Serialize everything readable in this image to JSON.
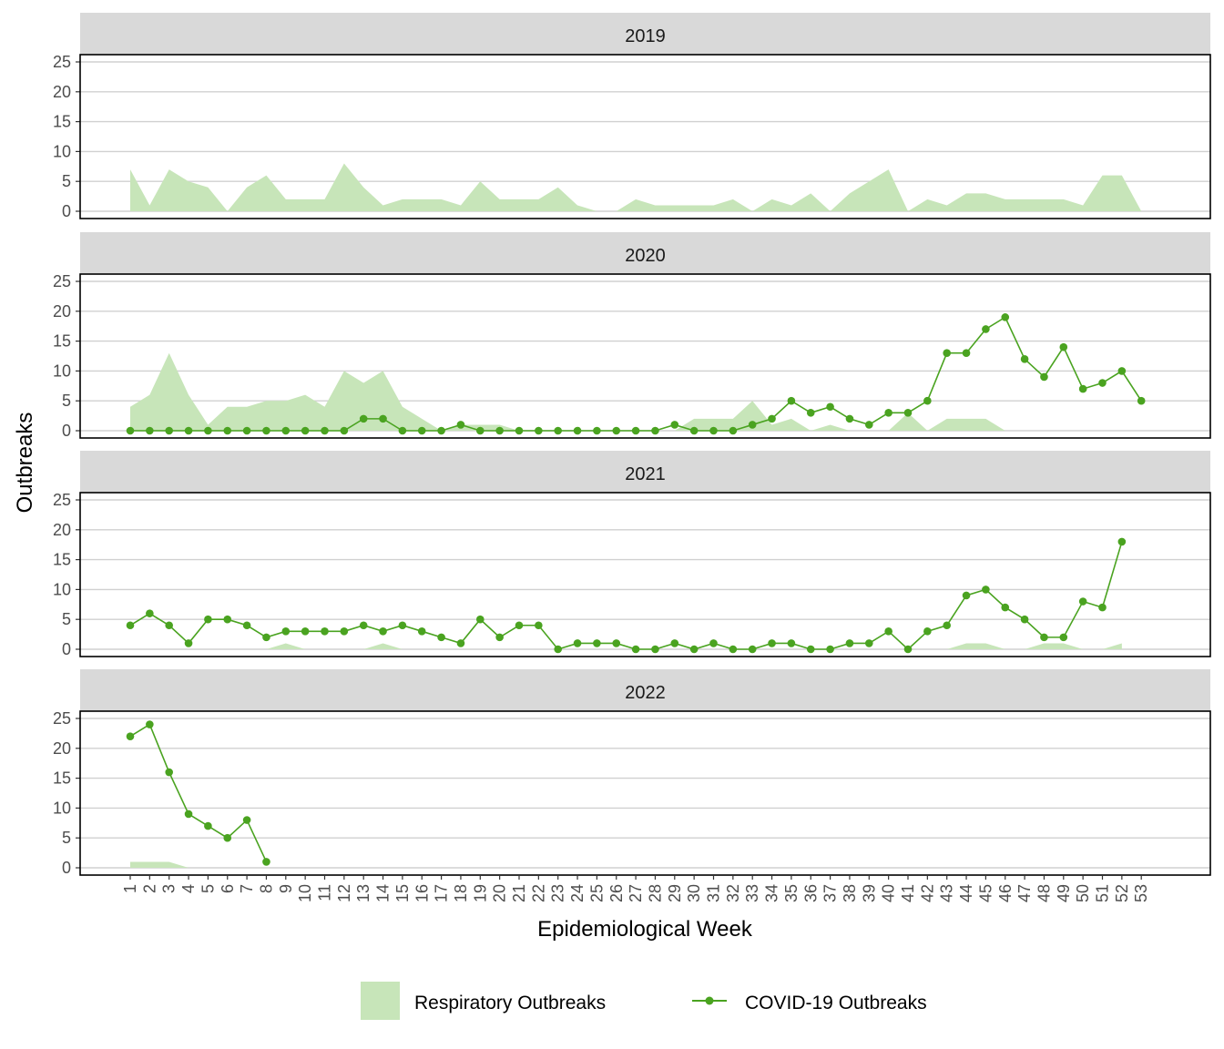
{
  "chart_data": {
    "type": "line",
    "xlabel": "Epidemiological Week",
    "ylabel": "Outbreaks",
    "ylim": [
      0,
      25
    ],
    "yticks": [
      0,
      5,
      10,
      15,
      20,
      25
    ],
    "weeks": [
      1,
      2,
      3,
      4,
      5,
      6,
      7,
      8,
      9,
      10,
      11,
      12,
      13,
      14,
      15,
      16,
      17,
      18,
      19,
      20,
      21,
      22,
      23,
      24,
      25,
      26,
      27,
      28,
      29,
      30,
      31,
      32,
      33,
      34,
      35,
      36,
      37,
      38,
      39,
      40,
      41,
      42,
      43,
      44,
      45,
      46,
      47,
      48,
      49,
      50,
      51,
      52,
      53
    ],
    "legend": {
      "position": "bottom",
      "entries": [
        "Respiratory Outbreaks",
        "COVID-19 Outbreaks"
      ]
    },
    "colors": {
      "respiratory": "#c7e5b9",
      "covid": "#4aa320"
    },
    "panels": [
      {
        "title": "2019",
        "respiratory": [
          7,
          1,
          7,
          5,
          4,
          0,
          4,
          6,
          2,
          2,
          2,
          8,
          4,
          1,
          2,
          2,
          2,
          1,
          5,
          2,
          2,
          2,
          4,
          1,
          0,
          0,
          2,
          1,
          1,
          1,
          1,
          2,
          0,
          2,
          1,
          3,
          0,
          3,
          5,
          7,
          0,
          2,
          1,
          3,
          3,
          2,
          2,
          2,
          2,
          1,
          6,
          6,
          0
        ],
        "covid": null
      },
      {
        "title": "2020",
        "respiratory": [
          4,
          6,
          13,
          6,
          1,
          4,
          4,
          5,
          5,
          6,
          4,
          10,
          8,
          10,
          4,
          2,
          0,
          1,
          1,
          1,
          0,
          0,
          0,
          0,
          0,
          0,
          0,
          0,
          0,
          2,
          2,
          2,
          5,
          1,
          2,
          0,
          1,
          0,
          0,
          0,
          3,
          0,
          2,
          2,
          2,
          0,
          0,
          0,
          0,
          0,
          0,
          0,
          0
        ],
        "covid": [
          0,
          0,
          0,
          0,
          0,
          0,
          0,
          0,
          0,
          0,
          0,
          0,
          2,
          2,
          0,
          0,
          0,
          1,
          0,
          0,
          0,
          0,
          0,
          0,
          0,
          0,
          0,
          0,
          1,
          0,
          0,
          0,
          1,
          2,
          5,
          3,
          4,
          2,
          1,
          3,
          3,
          5,
          13,
          13,
          17,
          19,
          12,
          9,
          14,
          7,
          8,
          10,
          5
        ]
      },
      {
        "title": "2021",
        "respiratory": [
          0,
          0,
          0,
          0,
          0,
          0,
          0,
          0,
          1,
          0,
          0,
          0,
          0,
          1,
          0,
          0,
          0,
          0,
          0,
          0,
          0,
          0,
          0,
          0,
          0,
          0,
          0,
          0,
          0,
          0,
          0,
          0,
          0,
          0,
          0,
          0,
          0,
          0,
          0,
          0,
          0,
          0,
          0,
          1,
          1,
          0,
          0,
          1,
          1,
          0,
          0,
          1,
          null
        ],
        "covid": [
          4,
          6,
          4,
          1,
          5,
          5,
          4,
          2,
          3,
          3,
          3,
          3,
          4,
          3,
          4,
          3,
          2,
          1,
          5,
          2,
          4,
          4,
          0,
          1,
          1,
          1,
          0,
          0,
          1,
          0,
          1,
          0,
          0,
          1,
          1,
          0,
          0,
          1,
          1,
          3,
          0,
          3,
          4,
          9,
          10,
          7,
          5,
          2,
          2,
          8,
          7,
          18,
          null
        ]
      },
      {
        "title": "2022",
        "respiratory": [
          1,
          1,
          1,
          0,
          0,
          0,
          0,
          0,
          null,
          null,
          null,
          null,
          null,
          null,
          null,
          null,
          null,
          null,
          null,
          null,
          null,
          null,
          null,
          null,
          null,
          null,
          null,
          null,
          null,
          null,
          null,
          null,
          null,
          null,
          null,
          null,
          null,
          null,
          null,
          null,
          null,
          null,
          null,
          null,
          null,
          null,
          null,
          null,
          null,
          null,
          null,
          null,
          null
        ],
        "covid": [
          22,
          24,
          16,
          9,
          7,
          5,
          8,
          1,
          null,
          null,
          null,
          null,
          null,
          null,
          null,
          null,
          null,
          null,
          null,
          null,
          null,
          null,
          null,
          null,
          null,
          null,
          null,
          null,
          null,
          null,
          null,
          null,
          null,
          null,
          null,
          null,
          null,
          null,
          null,
          null,
          null,
          null,
          null,
          null,
          null,
          null,
          null,
          null,
          null,
          null,
          null,
          null,
          null
        ]
      }
    ]
  }
}
